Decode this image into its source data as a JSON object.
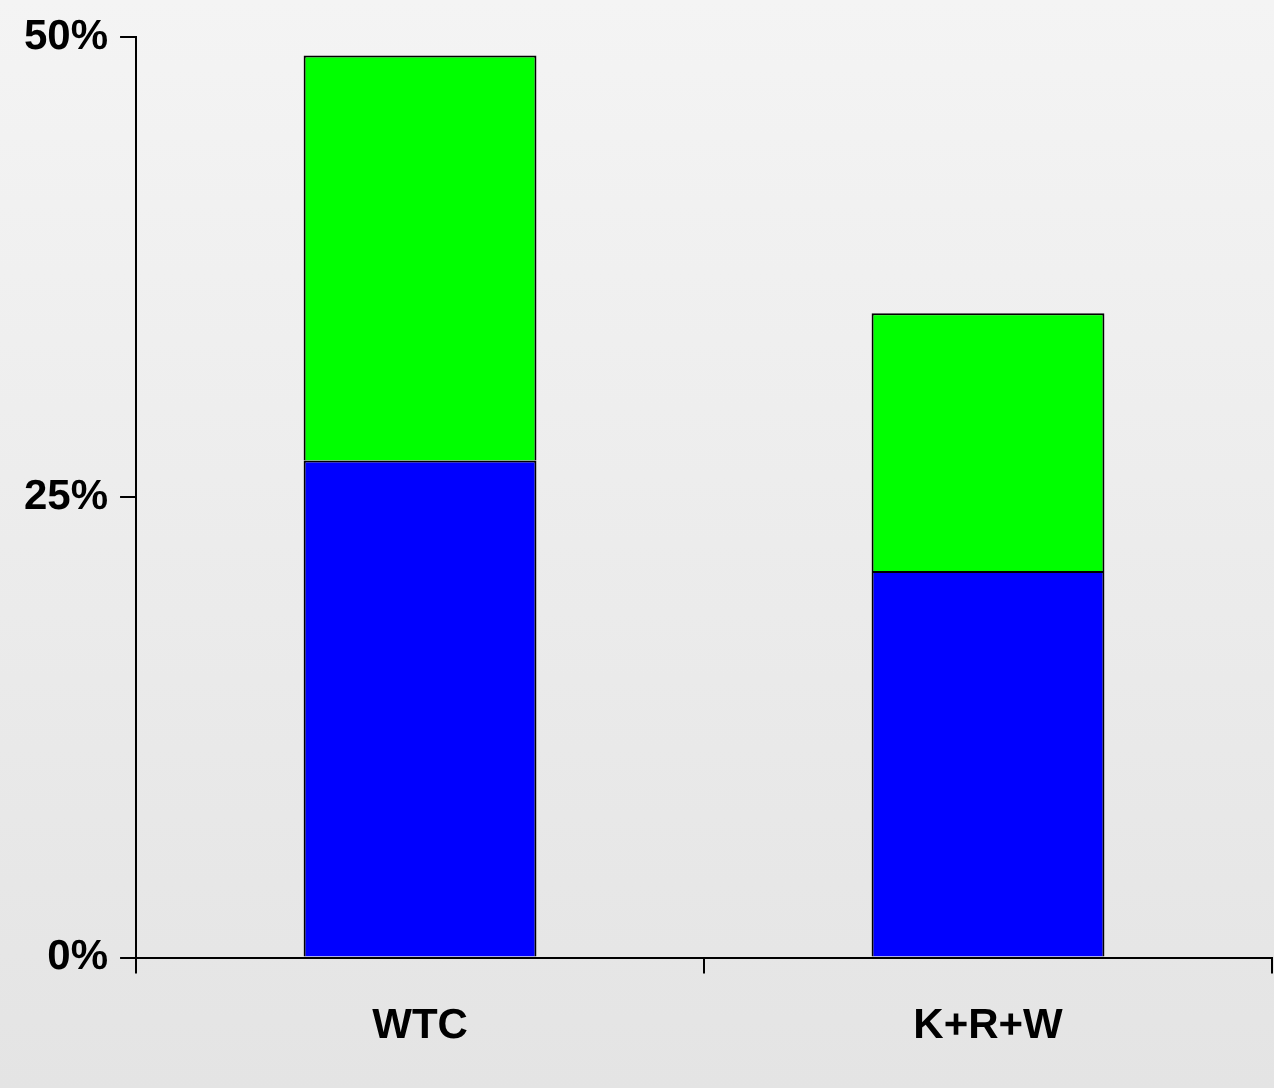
{
  "chart_data": {
    "type": "bar",
    "stacked": true,
    "categories": [
      "WTC",
      "K+R+W"
    ],
    "series": [
      {
        "color": "#0000ff",
        "values": [
          27,
          21
        ]
      },
      {
        "color": "#00ff00",
        "values": [
          22,
          14
        ]
      }
    ],
    "ylim": [
      0,
      50
    ],
    "yticks": [
      {
        "value": 0,
        "label": "0%"
      },
      {
        "value": 25,
        "label": "25%"
      },
      {
        "value": 50,
        "label": "50%"
      }
    ],
    "grid": false,
    "legend": false
  }
}
